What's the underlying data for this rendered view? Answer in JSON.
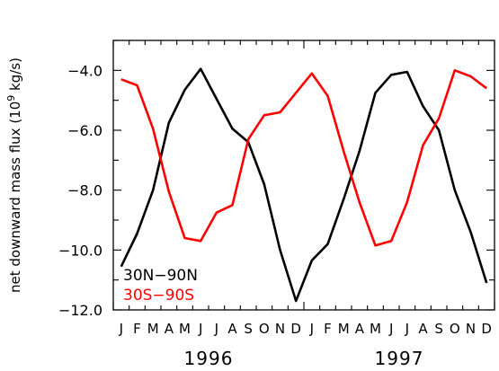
{
  "chart_data": {
    "type": "line",
    "ylabel": "net downward mass flux (10⁹ kg/s)",
    "ylabel_parts": {
      "main": "net downward mass flux (10",
      "exponent": "9",
      "unit": " kg/s)"
    },
    "ylim": [
      -12.0,
      -3.0
    ],
    "yticks": [
      {
        "value": -4.0,
        "label": "−4.0"
      },
      {
        "value": -6.0,
        "label": "−6.0"
      },
      {
        "value": -8.0,
        "label": "−8.0"
      },
      {
        "value": -10.0,
        "label": "−10.0"
      },
      {
        "value": -12.0,
        "label": "−12.0"
      }
    ],
    "months": [
      "J",
      "F",
      "M",
      "A",
      "M",
      "J",
      "J",
      "A",
      "S",
      "O",
      "N",
      "D",
      "J",
      "F",
      "M",
      "A",
      "M",
      "J",
      "J",
      "A",
      "S",
      "O",
      "N",
      "D"
    ],
    "years": [
      "1996",
      "1997"
    ],
    "legend_position": "bottom-left",
    "series": [
      {
        "name": "30N−90N",
        "color": "#000000",
        "values": [
          -10.55,
          -9.45,
          -8.0,
          -5.75,
          -4.65,
          -3.95,
          -4.95,
          -5.95,
          -6.4,
          -7.8,
          -10.0,
          -11.7,
          -10.35,
          -9.8,
          -8.3,
          -6.7,
          -4.75,
          -4.15,
          -4.05,
          -5.2,
          -6.0,
          -8.0,
          -9.4,
          -11.1
        ]
      },
      {
        "name": "30S−90S",
        "color": "#ff0000",
        "values": [
          -4.3,
          -4.5,
          -5.95,
          -8.05,
          -9.6,
          -9.7,
          -8.75,
          -8.5,
          -6.3,
          -5.5,
          -5.4,
          -4.75,
          -4.1,
          -4.85,
          -6.7,
          -8.4,
          -9.85,
          -9.7,
          -8.4,
          -6.5,
          -5.6,
          -4.0,
          -4.2,
          -4.6
        ]
      }
    ]
  }
}
